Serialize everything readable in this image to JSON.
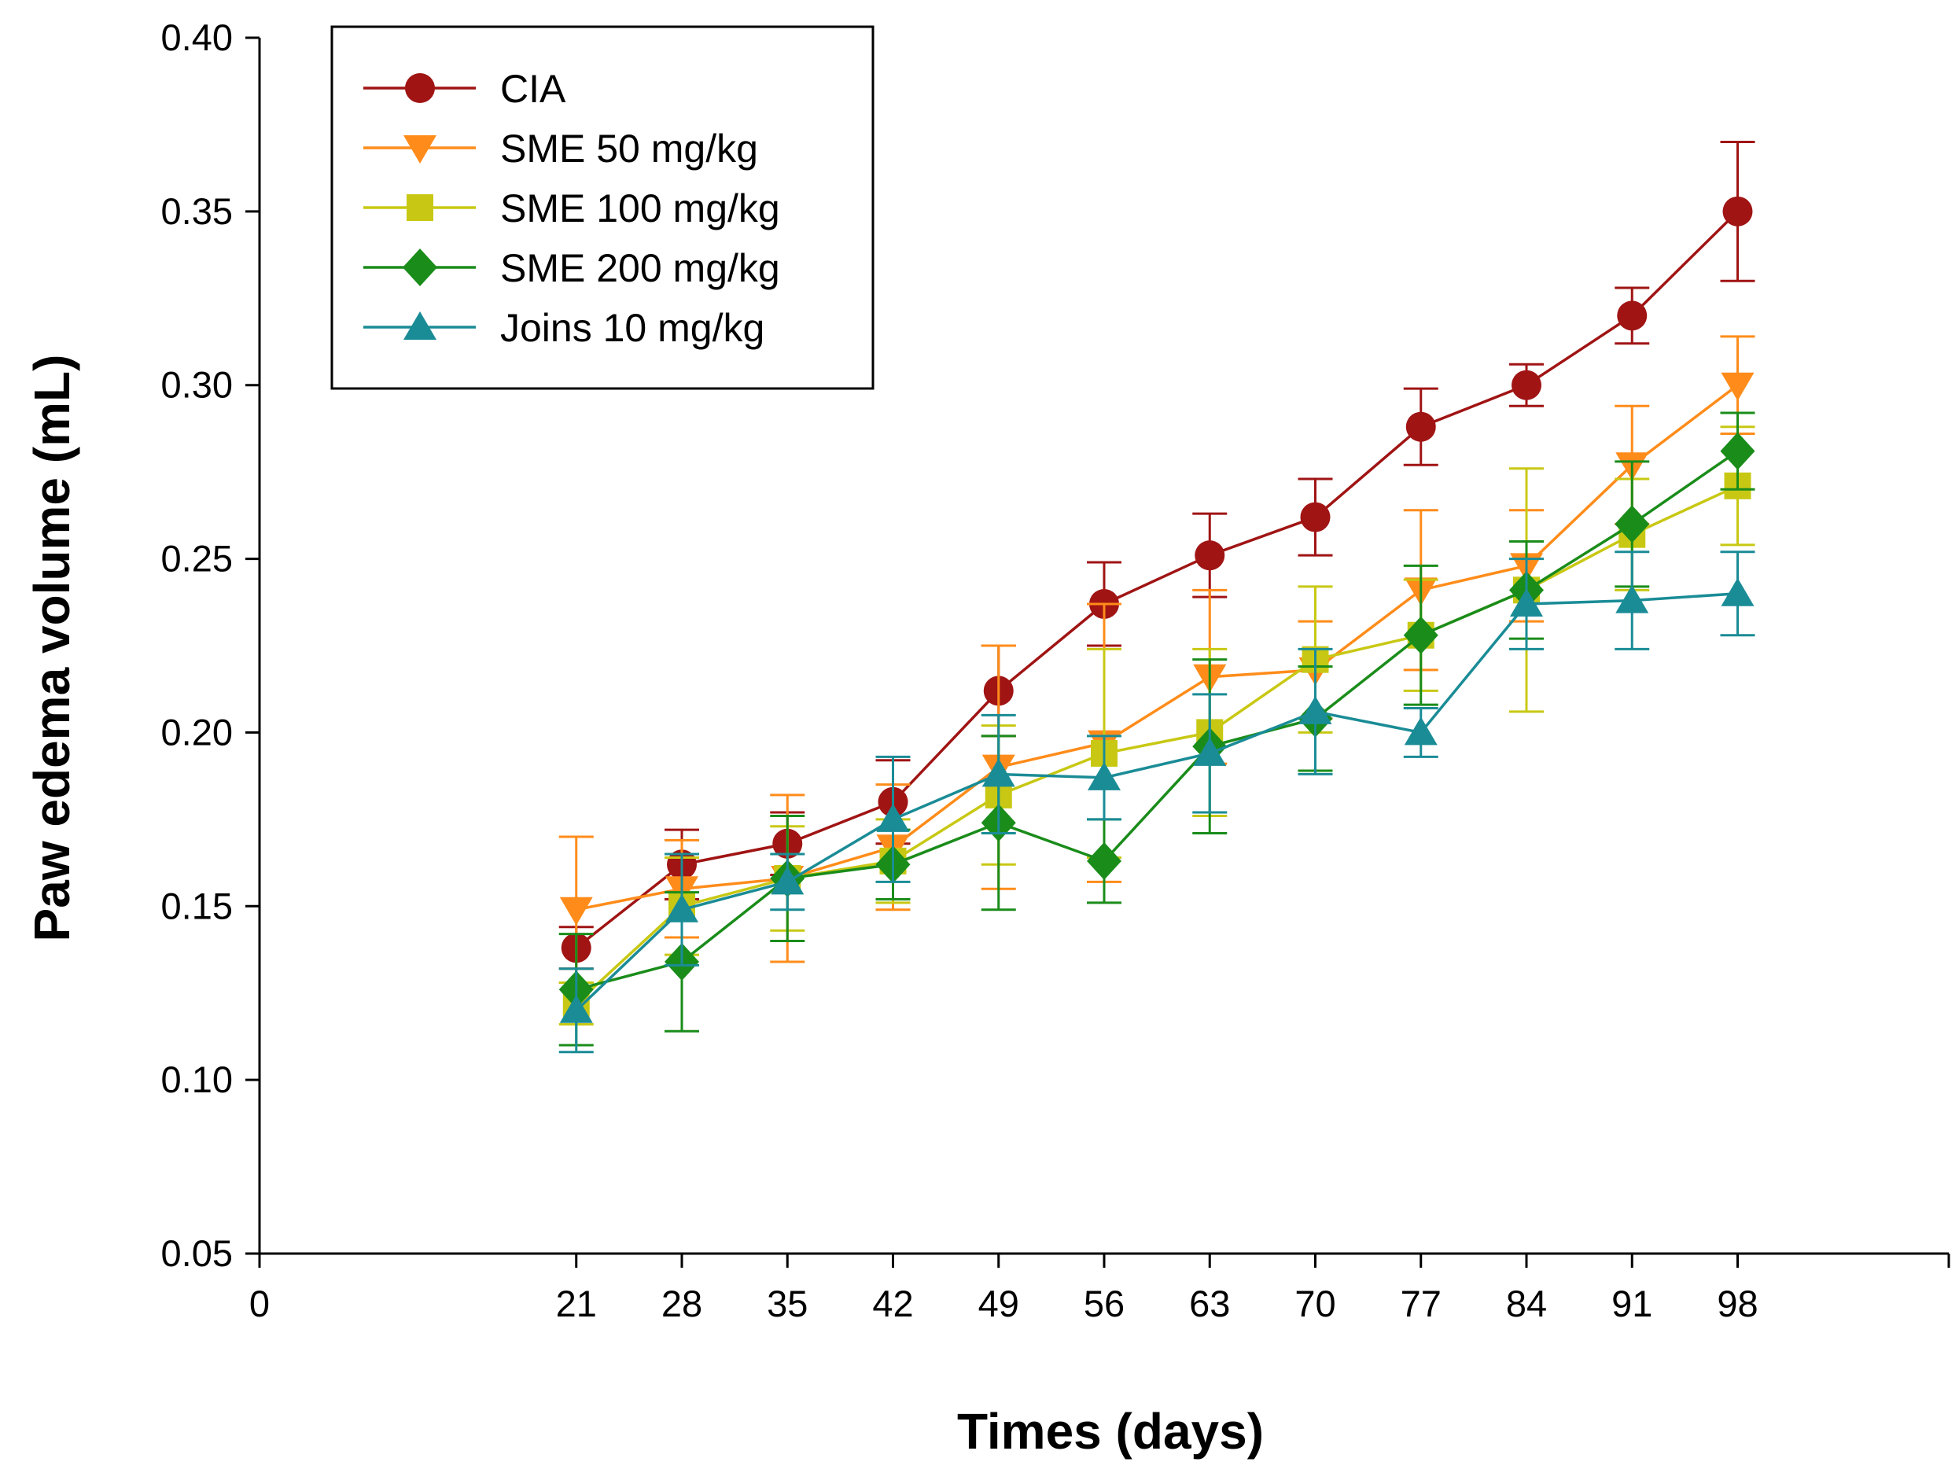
{
  "chart_data": {
    "type": "line",
    "title": "",
    "xlabel": "Times (days)",
    "ylabel": "Paw edema volume (mL)",
    "xlim": [
      0,
      112
    ],
    "ylim": [
      0.05,
      0.4
    ],
    "x": [
      21,
      28,
      35,
      42,
      49,
      56,
      63,
      70,
      77,
      84,
      91,
      98
    ],
    "x_ticks": [
      "0",
      "21",
      "28",
      "35",
      "42",
      "49",
      "56",
      "63",
      "70",
      "77",
      "84",
      "91",
      "98"
    ],
    "x_tick_values": [
      0,
      21,
      28,
      35,
      42,
      49,
      56,
      63,
      70,
      77,
      84,
      91,
      98
    ],
    "y_ticks": [
      "0.05",
      "0.10",
      "0.15",
      "0.20",
      "0.25",
      "0.30",
      "0.35",
      "0.40"
    ],
    "y_tick_values": [
      0.05,
      0.1,
      0.15,
      0.2,
      0.25,
      0.3,
      0.35,
      0.4
    ],
    "grid": false,
    "legend_position": "top-left",
    "series": [
      {
        "name": "CIA",
        "color": "#a01414",
        "marker": "circle",
        "values": [
          0.138,
          0.162,
          0.168,
          0.18,
          0.212,
          0.237,
          0.251,
          0.262,
          0.288,
          0.3,
          0.32,
          0.35
        ],
        "errors": [
          0.006,
          0.01,
          0.009,
          0.012,
          0.013,
          0.012,
          0.012,
          0.011,
          0.011,
          0.006,
          0.008,
          0.02
        ]
      },
      {
        "name": "SME 50 mg/kg",
        "color": "#ff8c1a",
        "marker": "triangle-down",
        "values": [
          0.149,
          0.155,
          0.158,
          0.167,
          0.19,
          0.197,
          0.216,
          0.218,
          0.241,
          0.248,
          0.277,
          0.3
        ],
        "errors": [
          0.021,
          0.014,
          0.024,
          0.018,
          0.035,
          0.04,
          0.025,
          0.014,
          0.023,
          0.016,
          0.017,
          0.014
        ]
      },
      {
        "name": "SME 100 mg/kg",
        "color": "#c8c814",
        "marker": "square",
        "values": [
          0.122,
          0.15,
          0.158,
          0.163,
          0.182,
          0.194,
          0.2,
          0.221,
          0.228,
          0.241,
          0.257,
          0.271
        ],
        "errors": [
          0.006,
          0.014,
          0.015,
          0.012,
          0.02,
          0.03,
          0.024,
          0.021,
          0.016,
          0.035,
          0.016,
          0.017
        ]
      },
      {
        "name": "SME 200 mg/kg",
        "color": "#1a8c1a",
        "marker": "diamond",
        "values": [
          0.126,
          0.134,
          0.158,
          0.162,
          0.174,
          0.163,
          0.196,
          0.204,
          0.228,
          0.241,
          0.26,
          0.281
        ],
        "errors": [
          0.016,
          0.02,
          0.018,
          0.01,
          0.025,
          0.012,
          0.025,
          0.015,
          0.02,
          0.014,
          0.018,
          0.011
        ]
      },
      {
        "name": "Joins 10 mg/kg",
        "color": "#1a8c96",
        "marker": "triangle-up",
        "values": [
          0.12,
          0.149,
          0.157,
          0.175,
          0.188,
          0.187,
          0.194,
          0.206,
          0.2,
          0.237,
          0.238,
          0.24
        ],
        "errors": [
          0.012,
          0.016,
          0.008,
          0.018,
          0.017,
          0.012,
          0.017,
          0.018,
          0.007,
          0.013,
          0.014,
          0.012
        ]
      }
    ]
  }
}
